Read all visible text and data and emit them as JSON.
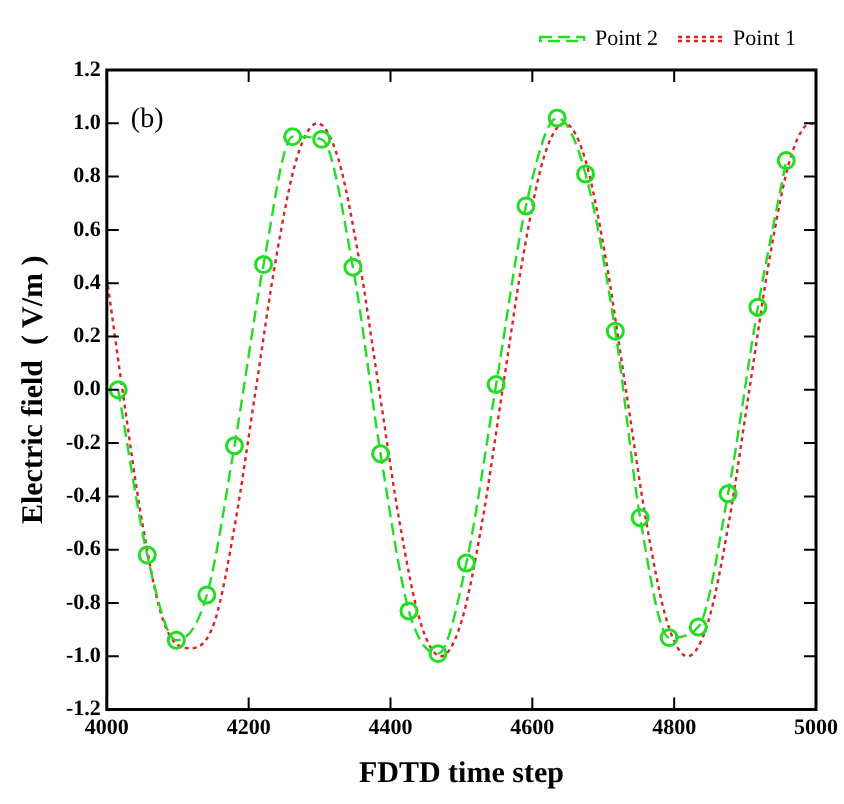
{
  "chart_data": {
    "type": "line",
    "xlabel": "FDTD time step",
    "ylabel": "Electric field  ( V/m )",
    "annotations": [
      "(b)"
    ],
    "xlim": [
      4000,
      5000
    ],
    "xticks": [
      4000,
      4200,
      4400,
      4600,
      4800,
      5000
    ],
    "ylim": [
      -1.2,
      1.2
    ],
    "yticks": [
      -1.2,
      {
        "value": -1,
        "label": "-1.0"
      },
      -0.8,
      -0.6,
      -0.4,
      -0.2,
      {
        "value": 0,
        "label": "0.0"
      },
      0.2,
      0.4,
      0.6,
      0.8,
      {
        "value": 1,
        "label": "1.0"
      },
      1.2
    ],
    "grid": false,
    "legend": "top right",
    "series": [
      {
        "name": "Point 2",
        "color": "#22dd22",
        "marker": "circle",
        "line_style": "dashed",
        "x": [
          4016,
          4057,
          4098,
          4141,
          4180,
          4221,
          4262,
          4303,
          4347,
          4386,
          4426,
          4467,
          4507,
          4549,
          4591,
          4635,
          4675,
          4717,
          4752,
          4793,
          4834,
          4876,
          4918,
          4958
        ],
        "values": [
          0.0,
          -0.62,
          -0.94,
          -0.77,
          -0.21,
          0.47,
          0.95,
          0.94,
          0.46,
          -0.24,
          -0.83,
          -0.99,
          -0.65,
          0.02,
          0.69,
          1.02,
          0.81,
          0.22,
          -0.48,
          -0.93,
          -0.89,
          -0.39,
          0.31,
          0.86
        ]
      },
      {
        "name": "Point 1",
        "color": "#dd2222",
        "marker": "none",
        "line_style": "dotted",
        "x": [
          4000,
          4022,
          4050,
          4080,
          4118,
          4152,
          4181,
          4210,
          4239,
          4268,
          4297,
          4326,
          4355,
          4384,
          4413,
          4442,
          4471,
          4500,
          4529,
          4558,
          4587,
          4616,
          4645,
          4674,
          4703,
          4732,
          4761,
          4790,
          4819,
          4848,
          4877,
          4906,
          4935,
          4964,
          4993,
          5000
        ],
        "values": [
          0.42,
          0.0,
          -0.5,
          -0.87,
          -0.97,
          -0.87,
          -0.5,
          0.0,
          0.5,
          0.87,
          1.0,
          0.87,
          0.5,
          0.0,
          -0.5,
          -0.87,
          -1.0,
          -0.87,
          -0.5,
          0.0,
          0.5,
          0.87,
          1.0,
          0.87,
          0.5,
          0.0,
          -0.5,
          -0.87,
          -1.0,
          -0.87,
          -0.5,
          0.0,
          0.5,
          0.87,
          1.0,
          0.99
        ]
      }
    ]
  }
}
